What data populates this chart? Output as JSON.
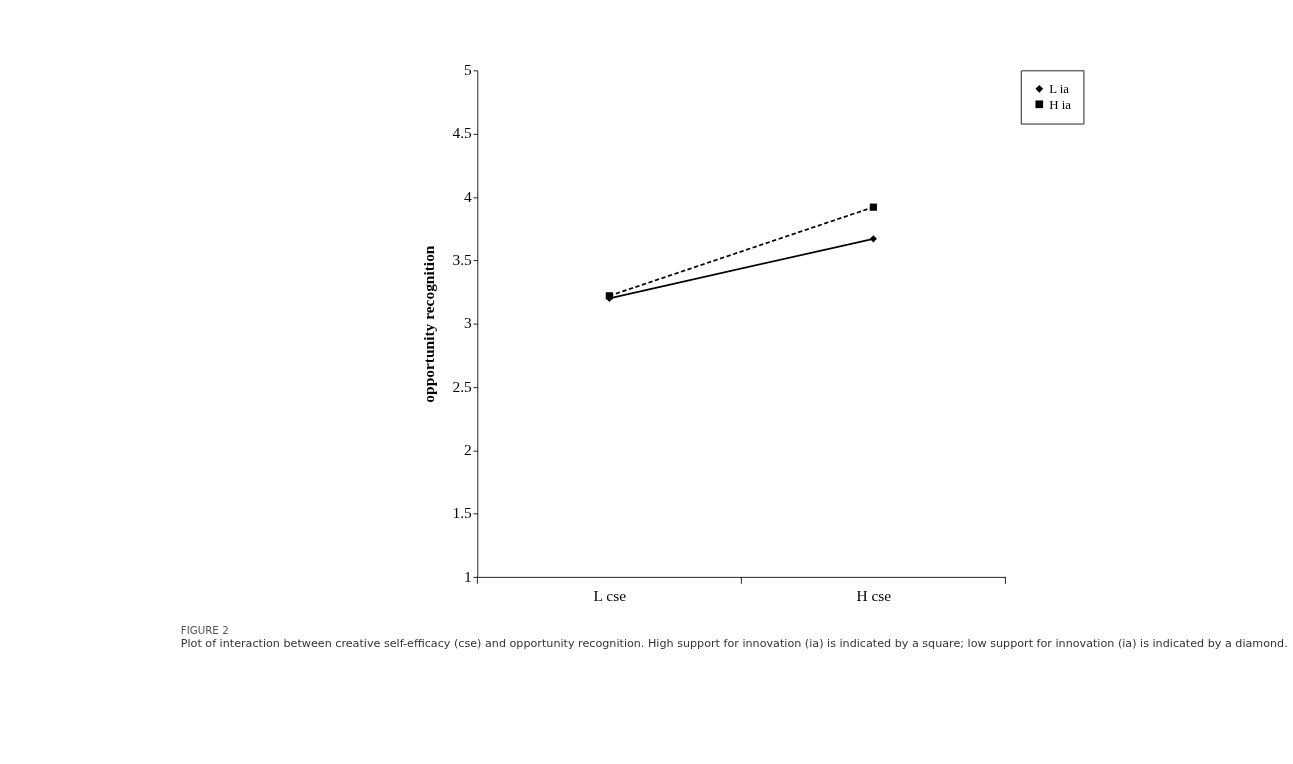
{
  "chart_data": {
    "type": "line",
    "ylabel": "opportunity recognition",
    "categories": [
      "L cse",
      "H cse"
    ],
    "series": [
      {
        "name": "L ia",
        "color": "#000000",
        "values": [
          3.2,
          3.67
        ],
        "marker": "diamond",
        "line_style": "solid"
      },
      {
        "name": "H ia",
        "color": "#000000",
        "values": [
          3.22,
          3.92
        ],
        "marker": "square",
        "line_style": "dashed"
      }
    ],
    "ylim": [
      1,
      5
    ],
    "yticks": [
      1,
      1.5,
      2,
      2.5,
      3,
      3.5,
      4,
      4.5,
      5
    ],
    "grid": false,
    "legend": "right",
    "annotations": [
      "FIGURE 2",
      "Plot of interaction between creative self-efficacy (cse) and opportunity recognition. High support for innovation (ia) is indicated by a square; low support for innovation (ia) is indicated by a diamond."
    ]
  }
}
